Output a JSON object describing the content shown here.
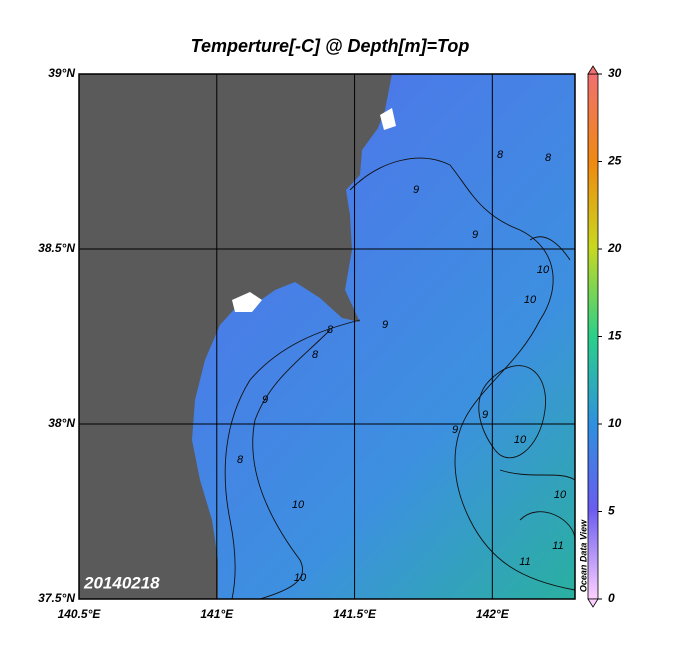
{
  "map": {
    "title": "Temperture[-C] @ Depth[m]=Top",
    "xlim": [
      140.5,
      142.3
    ],
    "ylim": [
      37.5,
      39
    ],
    "lon_ticks": [
      {
        "value": 140.5,
        "label": "140.5°E"
      },
      {
        "value": 141,
        "label": "141°E"
      },
      {
        "value": 141.5,
        "label": "141.5°E"
      },
      {
        "value": 142,
        "label": "142°E"
      }
    ],
    "lat_ticks": [
      {
        "value": 37.5,
        "label": "37.5°N"
      },
      {
        "value": 38,
        "label": "38°N"
      },
      {
        "value": 38.5,
        "label": "38.5°N"
      },
      {
        "value": 39,
        "label": "39°N"
      }
    ],
    "grid": true,
    "colorbar": {
      "lim": [
        0,
        30
      ],
      "ticks": [
        0,
        5,
        10,
        15,
        20,
        25,
        30
      ]
    },
    "date": "20140218",
    "watermark": "Ocean Data View",
    "contour_labels": [
      8,
      8,
      9,
      9,
      8,
      9,
      10,
      10,
      9,
      9,
      8,
      8,
      10,
      10,
      9,
      10,
      11,
      11,
      10
    ]
  }
}
